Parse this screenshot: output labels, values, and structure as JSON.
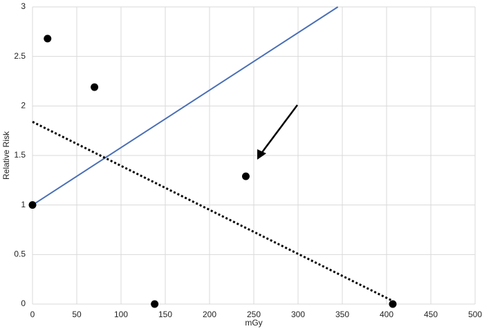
{
  "chart_data": {
    "type": "scatter",
    "x_label": "mGy",
    "y_label": "Relative Risk",
    "xlim": [
      0,
      500
    ],
    "ylim": [
      0,
      3
    ],
    "xticks": [
      0,
      50,
      100,
      150,
      200,
      250,
      300,
      350,
      400,
      450,
      500
    ],
    "yticks": [
      0,
      0.5,
      1,
      1.5,
      2,
      2.5,
      3
    ],
    "grid": true,
    "series": [
      {
        "color": "#000000",
        "marker": "circle",
        "x": [
          0,
          17,
          70,
          138,
          241,
          407
        ],
        "values": [
          1,
          2.68,
          2.19,
          0,
          1.29,
          0
        ]
      },
      {
        "color": "#4a6fb5",
        "line": "solid",
        "x": [
          0,
          345
        ],
        "values": [
          1,
          3
        ]
      },
      {
        "color": "#000000",
        "line": "dotted",
        "x": [
          0,
          405
        ],
        "values": [
          1.84,
          0.04
        ]
      }
    ]
  }
}
